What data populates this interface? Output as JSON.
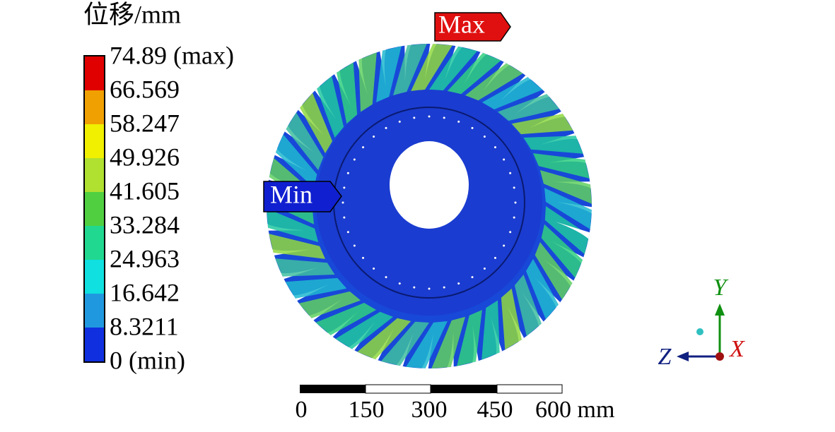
{
  "legend": {
    "title": "位移/mm",
    "labels": [
      "74.89 (max)",
      "66.569",
      "58.247",
      "49.926",
      "41.605",
      "33.284",
      "24.963",
      "16.642",
      "8.3211",
      "0 (min)"
    ]
  },
  "markers": {
    "max": "Max",
    "min": "Min"
  },
  "scale_bar": {
    "labels": [
      "0",
      "150",
      "300",
      "450",
      "600 mm"
    ]
  },
  "triad": {
    "x": "X",
    "y": "Y",
    "z": "Z"
  }
}
